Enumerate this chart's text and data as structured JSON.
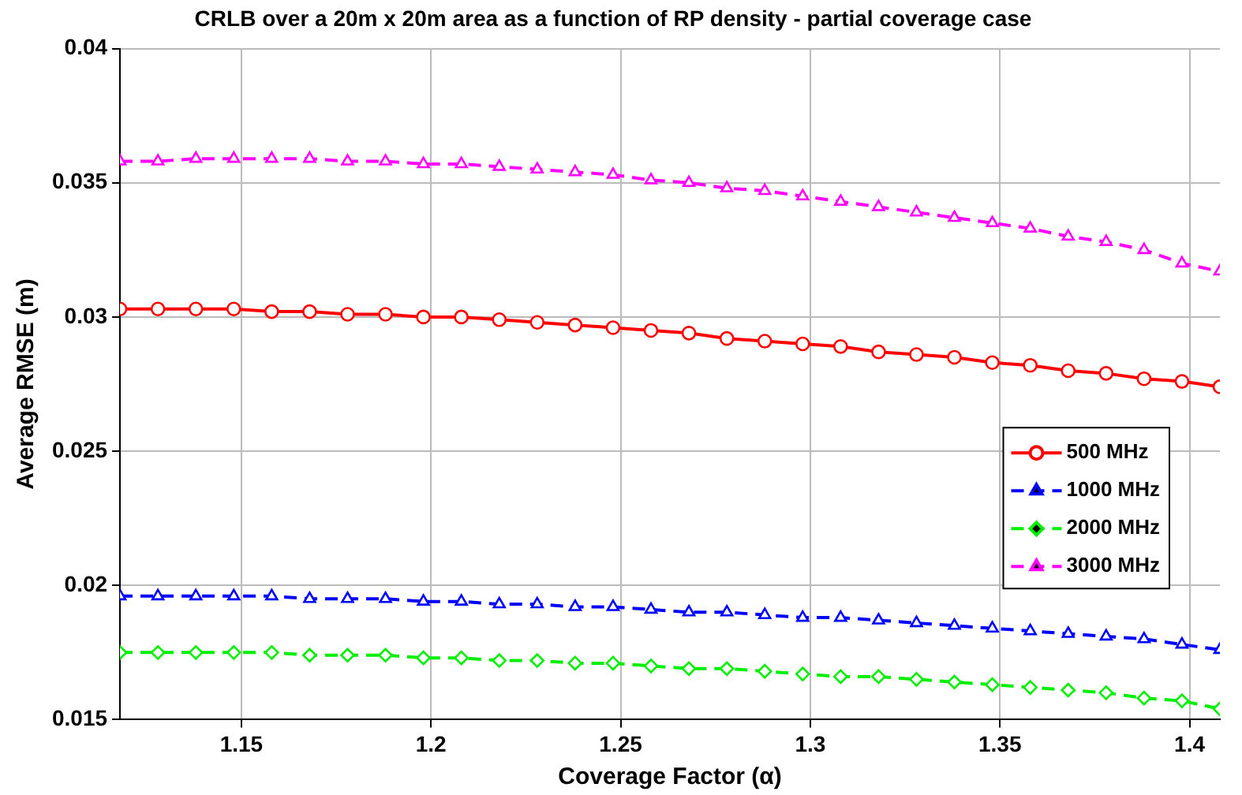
{
  "chart_data": {
    "type": "line",
    "title": "CRLB over a 20m x 20m area as a function of RP density - partial coverage case",
    "xlabel": "Coverage Factor (α)",
    "ylabel": "Average RMSE (m)",
    "x": [
      1.118,
      1.128,
      1.138,
      1.148,
      1.158,
      1.168,
      1.178,
      1.188,
      1.198,
      1.208,
      1.218,
      1.228,
      1.238,
      1.248,
      1.258,
      1.268,
      1.278,
      1.288,
      1.298,
      1.308,
      1.318,
      1.328,
      1.338,
      1.348,
      1.358,
      1.368,
      1.378,
      1.388,
      1.398,
      1.408
    ],
    "series": [
      {
        "name": "500 MHz",
        "color": "#ff0000",
        "marker": "circle",
        "line_style": "solid",
        "values": [
          0.0303,
          0.0303,
          0.0303,
          0.0303,
          0.0302,
          0.0302,
          0.0301,
          0.0301,
          0.03,
          0.03,
          0.0299,
          0.0298,
          0.0297,
          0.0296,
          0.0295,
          0.0294,
          0.0292,
          0.0291,
          0.029,
          0.0289,
          0.0287,
          0.0286,
          0.0285,
          0.0283,
          0.0282,
          0.028,
          0.0279,
          0.0277,
          0.0276,
          0.0274
        ]
      },
      {
        "name": "1000 MHz",
        "color": "#0000ff",
        "marker": "triangle",
        "line_style": "dashed",
        "values": [
          0.0196,
          0.0196,
          0.0196,
          0.0196,
          0.0196,
          0.0195,
          0.0195,
          0.0195,
          0.0194,
          0.0194,
          0.0193,
          0.0193,
          0.0192,
          0.0192,
          0.0191,
          0.019,
          0.019,
          0.0189,
          0.0188,
          0.0188,
          0.0187,
          0.0186,
          0.0185,
          0.0184,
          0.0183,
          0.0182,
          0.0181,
          0.018,
          0.0178,
          0.0176
        ]
      },
      {
        "name": "2000 MHz",
        "color": "#00ee00",
        "marker": "diamond",
        "line_style": "dashed",
        "values": [
          0.0175,
          0.0175,
          0.0175,
          0.0175,
          0.0175,
          0.0174,
          0.0174,
          0.0174,
          0.0173,
          0.0173,
          0.0172,
          0.0172,
          0.0171,
          0.0171,
          0.017,
          0.0169,
          0.0169,
          0.0168,
          0.0167,
          0.0166,
          0.0166,
          0.0165,
          0.0164,
          0.0163,
          0.0162,
          0.0161,
          0.016,
          0.0158,
          0.0157,
          0.0154
        ]
      },
      {
        "name": "3000 MHz",
        "color": "#ff00ff",
        "marker": "triangle",
        "line_style": "dashed",
        "values": [
          0.0358,
          0.0358,
          0.0359,
          0.0359,
          0.0359,
          0.0359,
          0.0358,
          0.0358,
          0.0357,
          0.0357,
          0.0356,
          0.0355,
          0.0354,
          0.0353,
          0.0351,
          0.035,
          0.0348,
          0.0347,
          0.0345,
          0.0343,
          0.0341,
          0.0339,
          0.0337,
          0.0335,
          0.0333,
          0.033,
          0.0328,
          0.0325,
          0.032,
          0.0317
        ]
      }
    ],
    "xlim": [
      1.118,
      1.408
    ],
    "xticks": [
      1.15,
      1.2,
      1.25,
      1.3,
      1.35,
      1.4
    ],
    "ylim": [
      0.015,
      0.04
    ],
    "yticks": [
      0.015,
      0.02,
      0.025,
      0.03,
      0.035,
      0.04
    ],
    "grid": true,
    "legend": "right"
  }
}
